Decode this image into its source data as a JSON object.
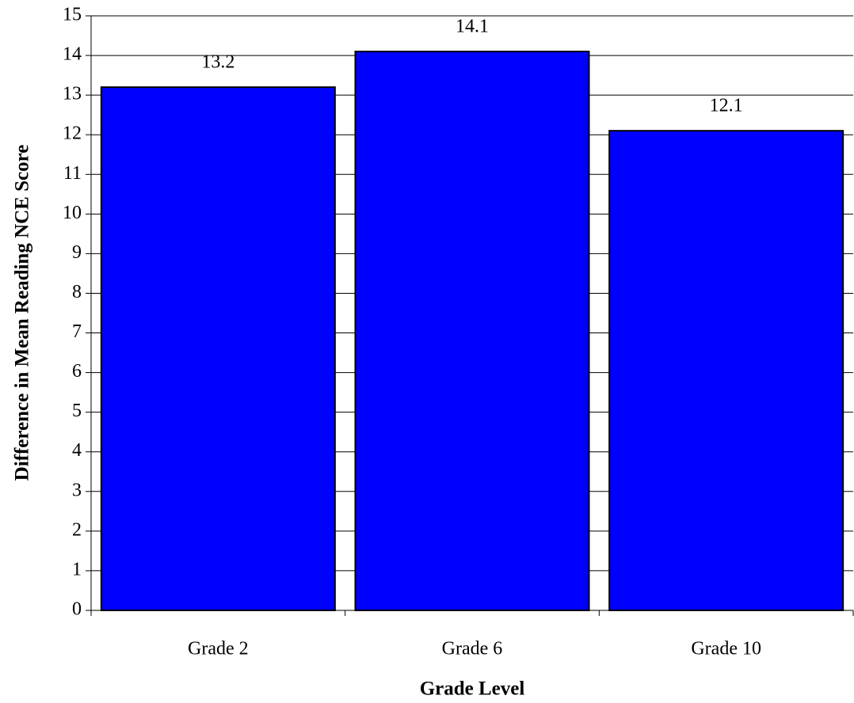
{
  "chart_data": {
    "type": "bar",
    "x_label": "Grade Level",
    "y_label": "Difference in Mean Reading NCE Score",
    "categories": [
      "Grade 2",
      "Grade 6",
      "Grade 10"
    ],
    "values": [
      13.2,
      14.1,
      12.1
    ],
    "color": "#0000ff",
    "ylim": [
      0,
      15
    ],
    "yticks": [
      0,
      1,
      2,
      3,
      4,
      5,
      6,
      7,
      8,
      9,
      10,
      11,
      12,
      13,
      14,
      15
    ],
    "grid": true
  }
}
